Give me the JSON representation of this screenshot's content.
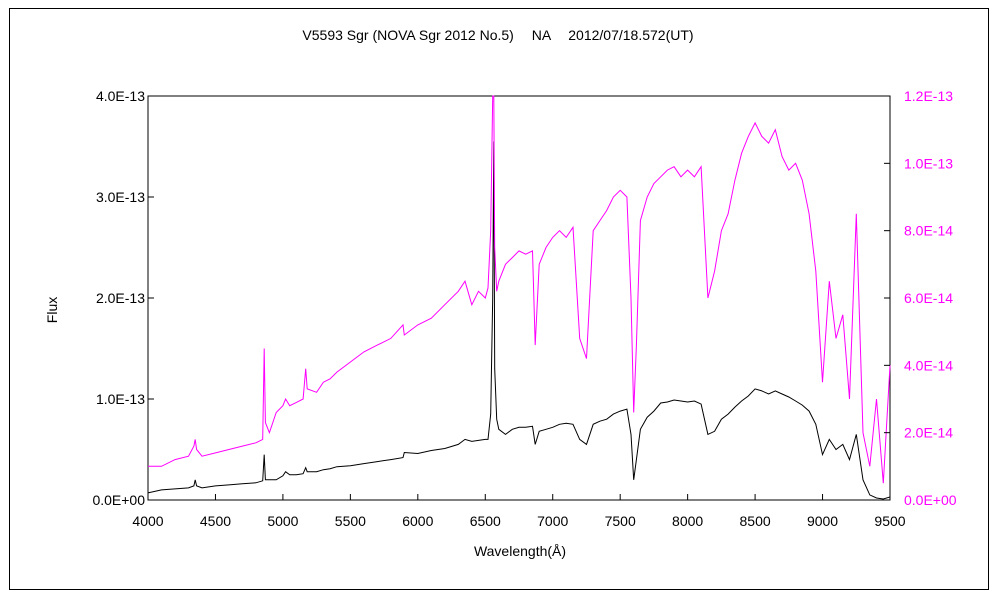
{
  "chart_data": {
    "type": "line",
    "title": "V5593 Sgr (NOVA Sgr 2012 No.5)　 NA　 2012/07/18.572(UT)",
    "xlabel": "Wavelength(Å)",
    "ylabel": "Flux",
    "xlim": [
      4000,
      9500
    ],
    "ylim": [
      0,
      4e-13
    ],
    "y2lim": [
      0,
      1.2e-13
    ],
    "x_ticks": [
      4000,
      4500,
      5000,
      5500,
      6000,
      6500,
      7000,
      7500,
      8000,
      8500,
      9000,
      9500
    ],
    "x_tick_labels": [
      "4000",
      "4500",
      "5000",
      "5500",
      "6000",
      "6500",
      "7000",
      "7500",
      "8000",
      "8500",
      "9000",
      "9500"
    ],
    "y_ticks": [
      0,
      1e-13,
      2e-13,
      3e-13,
      4e-13
    ],
    "y_tick_labels": [
      "0.0E+00",
      "1.0E-13",
      "2.0E-13",
      "3.0E-13",
      "4.0E-13"
    ],
    "y2_ticks": [
      0,
      2e-14,
      4e-14,
      6e-14,
      8e-14,
      1e-13,
      1.2e-13
    ],
    "y2_tick_labels": [
      "0.0E+00",
      "2.0E-14",
      "4.0E-14",
      "6.0E-14",
      "8.0E-14",
      "1.0E-13",
      "1.2E-13"
    ],
    "grid": false,
    "series": [
      {
        "axis": "left",
        "color": "#000000",
        "x": [
          4000,
          4100,
          4200,
          4300,
          4340,
          4350,
          4360,
          4400,
          4500,
          4600,
          4700,
          4800,
          4850,
          4861,
          4870,
          4900,
          4950,
          5000,
          5020,
          5050,
          5100,
          5150,
          5169,
          5180,
          5250,
          5300,
          5350,
          5400,
          5500,
          5600,
          5700,
          5800,
          5890,
          5900,
          6000,
          6100,
          6200,
          6300,
          6350,
          6400,
          6450,
          6500,
          6520,
          6540,
          6555,
          6563,
          6570,
          6585,
          6600,
          6650,
          6700,
          6750,
          6800,
          6850,
          6870,
          6900,
          6950,
          7000,
          7050,
          7100,
          7150,
          7200,
          7250,
          7300,
          7350,
          7400,
          7450,
          7500,
          7550,
          7580,
          7600,
          7620,
          7650,
          7700,
          7750,
          7800,
          7850,
          7900,
          7950,
          8000,
          8050,
          8100,
          8150,
          8200,
          8250,
          8300,
          8350,
          8400,
          8450,
          8500,
          8550,
          8600,
          8650,
          8700,
          8750,
          8800,
          8850,
          8900,
          8950,
          9000,
          9050,
          9100,
          9150,
          9200,
          9250,
          9300,
          9350,
          9400,
          9450,
          9500
        ],
        "y": [
          7e-15,
          1e-14,
          1.1e-14,
          1.2e-14,
          1.4e-14,
          2e-14,
          1.4e-14,
          1.2e-14,
          1.4e-14,
          1.5e-14,
          1.6e-14,
          1.7e-14,
          1.9e-14,
          4.5e-14,
          2e-14,
          2e-14,
          2e-14,
          2.4e-14,
          2.8e-14,
          2.5e-14,
          2.5e-14,
          2.6e-14,
          3.2e-14,
          2.8e-14,
          2.8e-14,
          3e-14,
          3.1e-14,
          3.3e-14,
          3.4e-14,
          3.6e-14,
          3.8e-14,
          4e-14,
          4.2e-14,
          4.7e-14,
          4.6e-14,
          4.9e-14,
          5.1e-14,
          5.5e-14,
          6e-14,
          5.8e-14,
          5.9e-14,
          6e-14,
          6e-14,
          8.5e-14,
          2e-13,
          3.55e-13,
          1.3e-13,
          8e-14,
          7e-14,
          6.5e-14,
          7e-14,
          7.2e-14,
          7.2e-14,
          7.3e-14,
          5.5e-14,
          6.8e-14,
          7e-14,
          7.2e-14,
          7.5e-14,
          7.6e-14,
          7.5e-14,
          6e-14,
          5.5e-14,
          7.5e-14,
          7.8e-14,
          8e-14,
          8.5e-14,
          8.8e-14,
          9e-14,
          6.5e-14,
          2e-14,
          4e-14,
          7e-14,
          8.2e-14,
          8.8e-14,
          9.6e-14,
          9.7e-14,
          9.9e-14,
          9.8e-14,
          9.7e-14,
          9.8e-14,
          9.5e-14,
          6.5e-14,
          6.8e-14,
          8e-14,
          8.5e-14,
          9.2e-14,
          9.8e-14,
          1.03e-13,
          1.1e-13,
          1.08e-13,
          1.05e-13,
          1.08e-13,
          1.05e-13,
          1.02e-13,
          9.8e-14,
          9.4e-14,
          8.8e-14,
          7.5e-14,
          4.5e-14,
          6e-14,
          5e-14,
          5.5e-14,
          4e-14,
          6.5e-14,
          2e-14,
          5e-15,
          2e-15,
          1e-15,
          3e-15
        ]
      },
      {
        "axis": "right",
        "color": "#ff00ff",
        "x": [
          4000,
          4100,
          4200,
          4300,
          4340,
          4350,
          4360,
          4400,
          4500,
          4600,
          4700,
          4800,
          4850,
          4861,
          4870,
          4900,
          4950,
          5000,
          5020,
          5050,
          5100,
          5150,
          5169,
          5180,
          5250,
          5300,
          5350,
          5400,
          5500,
          5600,
          5700,
          5800,
          5890,
          5900,
          6000,
          6100,
          6200,
          6300,
          6350,
          6400,
          6450,
          6500,
          6520,
          6540,
          6555,
          6563,
          6570,
          6585,
          6600,
          6650,
          6700,
          6750,
          6800,
          6850,
          6870,
          6900,
          6950,
          7000,
          7050,
          7100,
          7150,
          7200,
          7250,
          7300,
          7350,
          7400,
          7450,
          7500,
          7550,
          7580,
          7600,
          7620,
          7650,
          7700,
          7750,
          7800,
          7850,
          7900,
          7950,
          8000,
          8050,
          8100,
          8150,
          8200,
          8250,
          8300,
          8350,
          8400,
          8450,
          8500,
          8550,
          8600,
          8650,
          8700,
          8750,
          8800,
          8850,
          8900,
          8950,
          9000,
          9050,
          9100,
          9150,
          9200,
          9250,
          9300,
          9350,
          9400,
          9450,
          9500
        ],
        "y": [
          1e-14,
          1e-14,
          1.2e-14,
          1.3e-14,
          1.6e-14,
          1.8e-14,
          1.5e-14,
          1.3e-14,
          1.4e-14,
          1.5e-14,
          1.6e-14,
          1.7e-14,
          1.8e-14,
          4.5e-14,
          2.3e-14,
          2e-14,
          2.6e-14,
          2.8e-14,
          3e-14,
          2.8e-14,
          2.9e-14,
          3e-14,
          3.9e-14,
          3.3e-14,
          3.2e-14,
          3.5e-14,
          3.6e-14,
          3.8e-14,
          4.1e-14,
          4.4e-14,
          4.6e-14,
          4.8e-14,
          5.2e-14,
          4.9e-14,
          5.2e-14,
          5.4e-14,
          5.8e-14,
          6.2e-14,
          6.5e-14,
          5.8e-14,
          6.2e-14,
          6e-14,
          6.3e-14,
          8e-14,
          1.2e-13,
          1.2e-13,
          7.5e-14,
          6.2e-14,
          6.5e-14,
          7e-14,
          7.2e-14,
          7.4e-14,
          7.3e-14,
          7.4e-14,
          4.6e-14,
          7e-14,
          7.5e-14,
          7.8e-14,
          8e-14,
          7.8e-14,
          8.1e-14,
          4.8e-14,
          4.2e-14,
          8e-14,
          8.3e-14,
          8.6e-14,
          9e-14,
          9.2e-14,
          9e-14,
          6e-14,
          2.6e-14,
          4.6e-14,
          8.3e-14,
          9e-14,
          9.4e-14,
          9.6e-14,
          9.8e-14,
          9.9e-14,
          9.6e-14,
          9.8e-14,
          9.6e-14,
          9.9e-14,
          6e-14,
          6.8e-14,
          8e-14,
          8.5e-14,
          9.5e-14,
          1.03e-13,
          1.08e-13,
          1.12e-13,
          1.08e-13,
          1.06e-13,
          1.1e-13,
          1.02e-13,
          9.8e-14,
          1e-13,
          9.5e-14,
          8.5e-14,
          6.8e-14,
          3.5e-14,
          6.5e-14,
          4.8e-14,
          5.5e-14,
          3e-14,
          8.5e-14,
          2e-14,
          1e-14,
          3e-14,
          5e-15,
          4e-14
        ]
      }
    ]
  }
}
